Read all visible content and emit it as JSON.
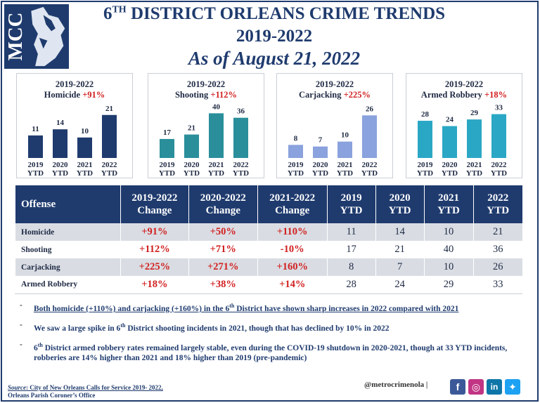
{
  "header": {
    "logo_text": "MCC",
    "title_line1_main": "6",
    "title_line1_sup": "TH",
    "title_line1_rest": " DISTRICT ORLEANS CRIME TRENDS",
    "title_line2": "2019-2022",
    "title_line3": "As of August 21, 2022"
  },
  "chart_data": [
    {
      "type": "bar",
      "title_line1": "2019-2022",
      "title_name": "Homicide",
      "title_pct": "+91%",
      "categories": [
        [
          "2019",
          "YTD"
        ],
        [
          "2020",
          "YTD"
        ],
        [
          "2021",
          "YTD"
        ],
        [
          "2022",
          "YTD"
        ]
      ],
      "values": [
        11,
        14,
        10,
        21
      ],
      "ylim": [
        0,
        24
      ],
      "color": "#1f3b6e"
    },
    {
      "type": "bar",
      "title_line1": "2019-2022",
      "title_name": "Shooting",
      "title_pct": "+112%",
      "categories": [
        [
          "2019",
          "YTD"
        ],
        [
          "2020",
          "YTD"
        ],
        [
          "2021",
          "YTD"
        ],
        [
          "2022",
          "YTD"
        ]
      ],
      "values": [
        17,
        21,
        40,
        36
      ],
      "ylim": [
        0,
        44
      ],
      "color": "#2a8f9b"
    },
    {
      "type": "bar",
      "title_line1": "2019-2022",
      "title_name": "Carjacking",
      "title_pct": "+225%",
      "categories": [
        [
          "2019",
          "YTD"
        ],
        [
          "2020",
          "YTD"
        ],
        [
          "2021",
          "YTD"
        ],
        [
          "2022",
          "YTD"
        ]
      ],
      "values": [
        8,
        7,
        10,
        26
      ],
      "ylim": [
        0,
        30
      ],
      "color": "#8aa2dd"
    },
    {
      "type": "bar",
      "title_line1": "2019-2022",
      "title_name": "Armed Robbery",
      "title_pct": "+18%",
      "categories": [
        [
          "2019",
          "YTD"
        ],
        [
          "2020",
          "YTD"
        ],
        [
          "2021",
          "YTD"
        ],
        [
          "2022",
          "YTD"
        ]
      ],
      "values": [
        28,
        24,
        29,
        33
      ],
      "ylim": [
        0,
        37
      ],
      "color": "#2aa7c4"
    }
  ],
  "table": {
    "headers": [
      {
        "l1": "Offense",
        "l2": ""
      },
      {
        "l1": "2019-2022",
        "l2": "Change"
      },
      {
        "l1": "2020-2022",
        "l2": "Change"
      },
      {
        "l1": "2021-2022",
        "l2": "Change"
      },
      {
        "l1": "2019",
        "l2": "YTD"
      },
      {
        "l1": "2020",
        "l2": "YTD"
      },
      {
        "l1": "2021",
        "l2": "YTD"
      },
      {
        "l1": "2022",
        "l2": "YTD"
      }
    ],
    "rows": [
      [
        "Homicide",
        "+91%",
        "+50%",
        "+110%",
        "11",
        "14",
        "10",
        "21"
      ],
      [
        "Shooting",
        "+112%",
        "+71%",
        "-10%",
        "17",
        "21",
        "40",
        "36"
      ],
      [
        "Carjacking",
        "+225%",
        "+271%",
        "+160%",
        "8",
        "7",
        "10",
        "26"
      ],
      [
        "Armed Robbery",
        "+18%",
        "+38%",
        "+14%",
        "28",
        "24",
        "29",
        "33"
      ]
    ]
  },
  "notes": {
    "n1_a": "Both homicide (+110%) and carjacking (+160%) in the 6",
    "n1_sup": "th",
    "n1_b": " District have shown sharp increases in 2022 compared with 2021",
    "n2_a": "We saw a large spike in 6",
    "n2_sup": "th",
    "n2_b": " District shooting incidents in 2021, though that has declined by 10% in 2022",
    "n3_a": "6",
    "n3_sup": "th",
    "n3_b": " District armed robbery rates remained largely stable, even during the COVID-19 shutdown in 2020-2021, though at 33 YTD incidents, robberies are 14% higher than 2021 and 18% higher than 2019 (pre-pandemic)",
    "dash": "-"
  },
  "footer": {
    "source_label": "Source",
    "source_text": ": City of New Orleans Calls for Service 2019- 2022,",
    "source_line2": "Orleans Parish Coroner’s Office",
    "handle": "@metrocrimenola  |",
    "social": [
      {
        "name": "facebook-icon",
        "glyph": "f",
        "color": "#3b5998"
      },
      {
        "name": "instagram-icon",
        "glyph": "◎",
        "color": "#c13584"
      },
      {
        "name": "linkedin-icon",
        "glyph": "in",
        "color": "#0e76a8"
      },
      {
        "name": "twitter-icon",
        "glyph": "✦",
        "color": "#1da1f2"
      }
    ]
  }
}
